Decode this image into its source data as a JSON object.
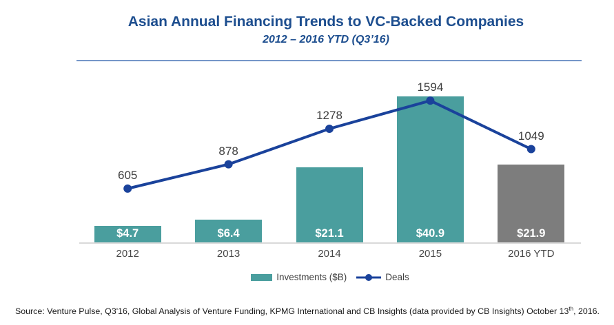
{
  "header": {
    "title": "Asian Annual Financing Trends to VC-Backed Companies",
    "subtitle": "2012 – 2016 YTD (Q3’16)"
  },
  "chart_data": {
    "type": "combo (bar + line)",
    "title": "Asian Annual Financing Trends to VC-Backed Companies",
    "subtitle": "2012 – 2016 YTD (Q3’16)",
    "categories": [
      "2012",
      "2013",
      "2014",
      "2015",
      "2016 YTD"
    ],
    "series": [
      {
        "name": "Investments ($B)",
        "type": "bar",
        "values": [
          4.7,
          6.4,
          21.1,
          40.9,
          21.9
        ],
        "data_labels": [
          "$4.7",
          "$6.4",
          "$21.1",
          "$40.9",
          "$21.9"
        ],
        "point_colors": [
          "#4A9E9E",
          "#4A9E9E",
          "#4A9E9E",
          "#4A9E9E",
          "#7D7D7D"
        ]
      },
      {
        "name": "Deals",
        "type": "line",
        "values": [
          605,
          878,
          1278,
          1594,
          1049
        ],
        "data_labels": [
          "605",
          "878",
          "1278",
          "1594",
          "1049"
        ],
        "color": "#1A429B"
      }
    ],
    "xlabel": "",
    "ylabel": "",
    "ylim_bars": [
      0,
      48
    ],
    "ylim_line": [
      0,
      1950
    ],
    "grid": false,
    "axes_visible": "x only (no tick values shown)",
    "legend_position": "bottom-center"
  },
  "legend": {
    "investments_label": "Investments ($B)",
    "deals_label": "Deals"
  },
  "footer": {
    "source_prefix": "Source: Venture Pulse, Q3'16, Global Analysis of Venture Funding, KPMG International and CB Insights (data provided by CB Insights) October 13",
    "source_sup": "th",
    "source_suffix": ", 2016."
  },
  "colors": {
    "title_blue": "#1D4E8F",
    "separator_blue": "#7596C8",
    "bar_teal": "#4A9E9E",
    "bar_gray": "#7D7D7D",
    "line_blue": "#1A429B",
    "axis_gray": "#D9D9D9",
    "bar_label_white": "#FFFFFF",
    "data_label_dark": "#3D3D3D"
  }
}
